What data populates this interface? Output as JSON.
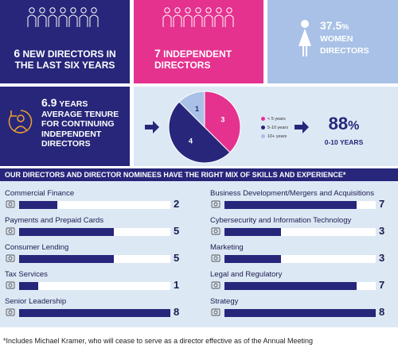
{
  "tiles": {
    "new_directors": {
      "number": "6",
      "text_line1": " NEW DIRECTORS IN",
      "text_line2": "THE LAST SIX YEARS"
    },
    "independent": {
      "number": "7",
      "text_line1": " INDEPENDENT",
      "text_line2": "DIRECTORS"
    },
    "women": {
      "number": "37.5",
      "unit": "%",
      "text_line1": "WOMEN",
      "text_line2": "DIRECTORS"
    },
    "tenure": {
      "number": "6.9",
      "unit": " YEARS",
      "line2": "AVERAGE TENURE",
      "line3": "FOR CONTINUING",
      "line4": "INDEPENDENT",
      "line5": "DIRECTORS"
    },
    "tenure_pct": {
      "number": "88",
      "unit": "%",
      "subtitle": "0-10 YEARS"
    }
  },
  "pie": {
    "slices": [
      {
        "label": "< 5 years",
        "value": 3,
        "color": "#e5328f"
      },
      {
        "label": "5-10 years",
        "value": 4,
        "color": "#27267a"
      },
      {
        "label": "10+ years",
        "value": 1,
        "color": "#a9c1e6"
      }
    ]
  },
  "skills": {
    "title": "OUR DIRECTORS AND DIRECTOR NOMINEES HAVE THE RIGHT MIX OF SKILLS AND EXPERIENCE*",
    "max": 8,
    "left": [
      {
        "name": "Commercial Finance",
        "value": "2",
        "fraction": 0.25,
        "icon": "finance-icon"
      },
      {
        "name": "Payments and Prepaid Cards",
        "value": "5",
        "fraction": 0.625,
        "icon": "card-icon"
      },
      {
        "name": "Consumer Lending",
        "value": "5",
        "fraction": 0.625,
        "icon": "lending-icon"
      },
      {
        "name": "Tax Services",
        "value": "1",
        "fraction": 0.125,
        "icon": "tax-icon"
      },
      {
        "name": "Senior Leadership",
        "value": "8",
        "fraction": 1.0,
        "icon": "leadership-icon"
      }
    ],
    "right": [
      {
        "name": "Business Development/Mergers and Acquisitions",
        "value": "7",
        "fraction": 0.875,
        "icon": "business-icon"
      },
      {
        "name": "Cybersecurity and Information Technology",
        "value": "3",
        "fraction": 0.375,
        "icon": "cyber-icon"
      },
      {
        "name": "Marketing",
        "value": "3",
        "fraction": 0.375,
        "icon": "marketing-icon"
      },
      {
        "name": "Legal and Regulatory",
        "value": "7",
        "fraction": 0.875,
        "icon": "legal-icon"
      },
      {
        "name": "Strategy",
        "value": "8",
        "fraction": 1.0,
        "icon": "strategy-icon"
      }
    ]
  },
  "footnote": "*Includes Michael Kramer, who will cease to serve as a director effective as of the Annual Meeting"
}
